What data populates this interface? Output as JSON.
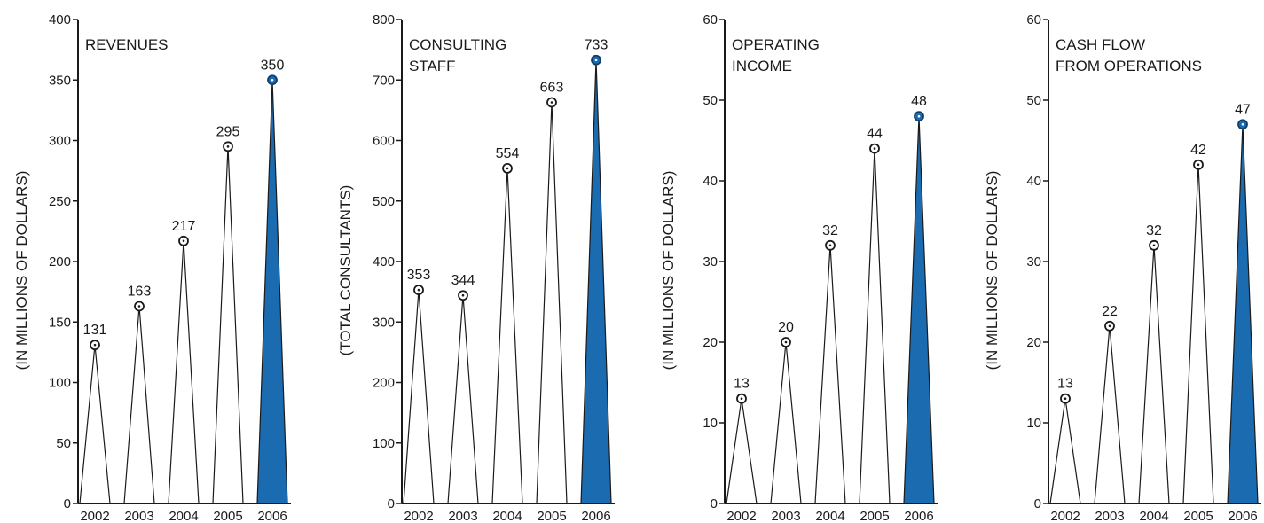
{
  "chart_data": [
    {
      "type": "spike",
      "title": [
        "REVENUES"
      ],
      "ylabel": "(IN MILLIONS OF DOLLARS)",
      "categories": [
        "2002",
        "2003",
        "2004",
        "2005",
        "2006"
      ],
      "values": [
        131,
        163,
        217,
        295,
        350
      ],
      "ylim": [
        0,
        400
      ],
      "yticks": [
        0,
        50,
        100,
        150,
        200,
        250,
        300,
        350,
        400
      ],
      "highlight_index": 4
    },
    {
      "type": "spike",
      "title": [
        "CONSULTING",
        "STAFF"
      ],
      "ylabel": "(TOTAL CONSULTANTS)",
      "categories": [
        "2002",
        "2003",
        "2004",
        "2005",
        "2006"
      ],
      "values": [
        353,
        344,
        554,
        663,
        733
      ],
      "ylim": [
        0,
        800
      ],
      "yticks": [
        0,
        100,
        200,
        300,
        400,
        500,
        600,
        700,
        800
      ],
      "highlight_index": 4
    },
    {
      "type": "spike",
      "title": [
        "OPERATING",
        "INCOME"
      ],
      "ylabel": "(IN MILLIONS OF DOLLARS)",
      "categories": [
        "2002",
        "2003",
        "2004",
        "2005",
        "2006"
      ],
      "values": [
        13,
        20,
        32,
        44,
        48
      ],
      "ylim": [
        0,
        60
      ],
      "yticks": [
        0,
        10,
        20,
        30,
        40,
        50,
        60
      ],
      "highlight_index": 4
    },
    {
      "type": "spike",
      "title": [
        "CASH FLOW",
        "FROM OPERATIONS"
      ],
      "ylabel": "(IN MILLIONS OF DOLLARS)",
      "categories": [
        "2002",
        "2003",
        "2004",
        "2005",
        "2006"
      ],
      "values": [
        13,
        22,
        32,
        42,
        47
      ],
      "ylim": [
        0,
        60
      ],
      "yticks": [
        0,
        10,
        20,
        30,
        40,
        50,
        60
      ],
      "highlight_index": 4
    }
  ],
  "colors": {
    "highlight_fill": "#1a6bb0",
    "highlight_dot": "#0d3f6e",
    "line": "#1a1a1a",
    "background": "#ffffff"
  }
}
